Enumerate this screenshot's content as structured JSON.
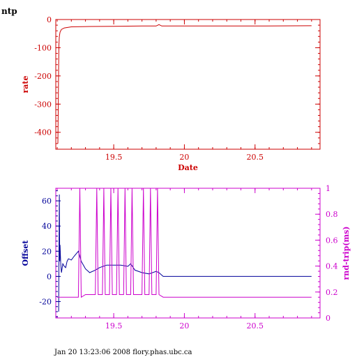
{
  "page_title": "ntp",
  "footer": "Jan 20 13:23:06 2008 flory.phas.ubc.ca",
  "colors": {
    "rate": "#cc0000",
    "offset": "#000099",
    "rndtrip": "#cc00cc",
    "text_black": "#000000"
  },
  "chart_data": [
    {
      "type": "line",
      "xlabel": "Date",
      "ylabel": "rate",
      "xlim": [
        19.09,
        20.96
      ],
      "ylim": [
        -460,
        0
      ],
      "x_ticks": [
        19.5,
        20,
        20.5
      ],
      "x_tick_labels": [
        "19.5",
        "20",
        "20.5"
      ],
      "y_ticks": [
        -400,
        -300,
        -200,
        -100,
        0
      ],
      "y_tick_labels": [
        "-400",
        "-300",
        "-200",
        "-100",
        "0"
      ],
      "series": [
        {
          "name": "rate",
          "x": [
            19.105,
            19.108,
            19.11,
            19.112,
            19.115,
            19.12,
            19.13,
            19.15,
            19.2,
            19.3,
            19.5,
            19.7,
            19.8,
            19.82,
            19.84,
            19.9,
            20.2,
            20.5,
            20.9
          ],
          "values": [
            -440,
            -300,
            -170,
            -90,
            -60,
            -45,
            -35,
            -30,
            -26,
            -25,
            -24,
            -23,
            -23,
            -18,
            -23,
            -23,
            -23,
            -23,
            -22
          ]
        }
      ]
    },
    {
      "type": "line",
      "ylabel": "Offset",
      "ylabel_right": "rnd-trip(ms)",
      "xlim": [
        19.09,
        20.96
      ],
      "ylim": [
        -33,
        70
      ],
      "ylim_right": [
        0,
        1
      ],
      "x_ticks": [
        19.5,
        20,
        20.5
      ],
      "x_tick_labels": [
        "19.5",
        "20",
        "20.5"
      ],
      "y_ticks": [
        -20,
        0,
        20,
        40,
        60
      ],
      "y_tick_labels": [
        "-20",
        "0",
        "20",
        "40",
        "60"
      ],
      "y_ticks_right": [
        0,
        0.2,
        0.4,
        0.6,
        0.8,
        1
      ],
      "y_tick_labels_right": [
        "0",
        "0.2",
        "0.4",
        "0.6",
        "0.8",
        "1"
      ],
      "series": [
        {
          "name": "Offset",
          "axis": "left",
          "x": [
            19.11,
            19.115,
            19.118,
            19.12,
            19.125,
            19.13,
            19.14,
            19.15,
            19.16,
            19.17,
            19.18,
            19.2,
            19.22,
            19.25,
            19.27,
            19.3,
            19.33,
            19.37,
            19.4,
            19.45,
            19.5,
            19.55,
            19.6,
            19.62,
            19.65,
            19.7,
            19.75,
            19.8,
            19.82,
            19.84,
            19.85,
            19.9,
            20.0,
            20.3,
            20.6,
            20.9
          ],
          "values": [
            -28,
            65,
            12,
            25,
            10,
            3,
            10,
            8,
            7,
            12,
            14,
            13,
            16,
            20,
            12,
            6,
            3,
            5,
            7,
            9,
            9,
            9,
            8,
            10,
            5,
            3,
            2,
            4,
            3,
            1,
            0,
            0,
            0,
            0,
            0,
            0
          ]
        },
        {
          "name": "rnd-trip(ms)",
          "axis": "right",
          "x": [
            19.1,
            19.2,
            19.25,
            19.26,
            19.27,
            19.3,
            19.37,
            19.38,
            19.39,
            19.42,
            19.43,
            19.44,
            19.47,
            19.48,
            19.49,
            19.52,
            19.53,
            19.54,
            19.57,
            19.58,
            19.59,
            19.62,
            19.63,
            19.64,
            19.7,
            19.71,
            19.72,
            19.75,
            19.76,
            19.77,
            19.8,
            19.81,
            19.82,
            19.85,
            20.0,
            20.3,
            20.6,
            20.9
          ],
          "values": [
            0.16,
            0.16,
            0.16,
            1.0,
            0.16,
            0.18,
            0.18,
            1.0,
            0.18,
            0.18,
            1.0,
            0.18,
            0.18,
            1.0,
            0.18,
            0.18,
            1.0,
            0.18,
            0.18,
            1.0,
            0.18,
            0.18,
            1.0,
            0.18,
            0.18,
            1.0,
            0.18,
            0.18,
            1.0,
            0.18,
            0.18,
            1.0,
            0.18,
            0.16,
            0.16,
            0.16,
            0.16,
            0.16
          ]
        }
      ]
    }
  ]
}
